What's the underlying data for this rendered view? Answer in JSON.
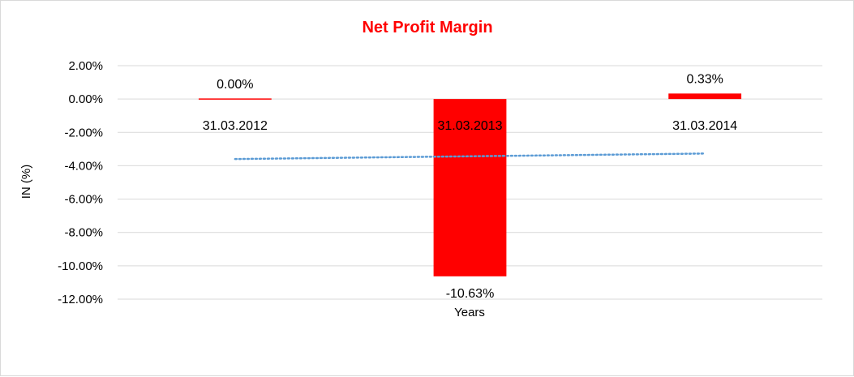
{
  "chart_data": {
    "type": "bar",
    "title": "Net Profit Margin",
    "xlabel": "Years",
    "ylabel": "IN (%)",
    "categories": [
      "31.03.2012",
      "31.03.2013",
      "31.03.2014"
    ],
    "values": [
      0.0,
      -10.63,
      0.33
    ],
    "data_labels": [
      "0.00%",
      "-10.63%",
      "0.33%"
    ],
    "y_ticks": [
      2,
      0,
      -2,
      -4,
      -6,
      -8,
      -10,
      -12
    ],
    "y_tick_labels": [
      "2.00%",
      "0.00%",
      "-2.00%",
      "-4.00%",
      "-6.00%",
      "-8.00%",
      "-10.00%",
      "-12.00%"
    ],
    "ylim": [
      -12,
      2
    ],
    "grid": true,
    "legend": "none",
    "trendline": {
      "type": "linear",
      "style": "dotted",
      "color": "#5b9bd5"
    },
    "colors": {
      "bar": "#ff0000",
      "title": "#ff0000",
      "grid": "#d9d9d9"
    }
  }
}
